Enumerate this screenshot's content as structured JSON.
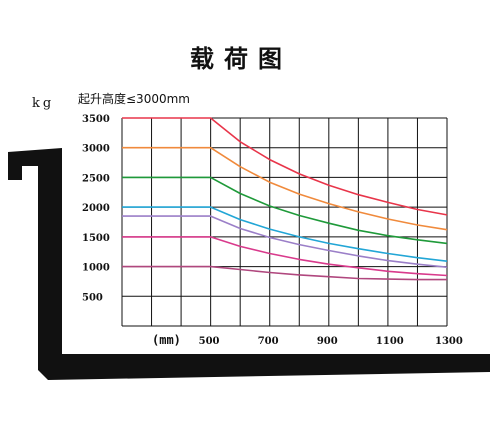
{
  "title": "载荷图",
  "y_unit": "kg",
  "subtitle": "起升高度≤3000mm",
  "x_unit_label": "(mm)",
  "chart_data": {
    "type": "line",
    "title": "载荷图",
    "xlabel": "(mm)",
    "ylabel": "kg",
    "xlim": [
      500,
      1300
    ],
    "ylim": [
      0,
      3500
    ],
    "x_ticks": [
      500,
      700,
      900,
      1100,
      1300
    ],
    "y_ticks": [
      500,
      1000,
      1500,
      2000,
      2500,
      3000,
      3500
    ],
    "grid": true,
    "series": [
      {
        "color": "#e8354a",
        "x": [
          100,
          500,
          600,
          700,
          800,
          900,
          1000,
          1100,
          1200,
          1300
        ],
        "y": [
          3500,
          3500,
          3100,
          2800,
          2560,
          2370,
          2210,
          2080,
          1960,
          1870
        ]
      },
      {
        "color": "#f08a3c",
        "x": [
          100,
          500,
          600,
          700,
          800,
          900,
          1000,
          1100,
          1200,
          1300
        ],
        "y": [
          3000,
          3000,
          2680,
          2420,
          2220,
          2060,
          1920,
          1800,
          1700,
          1620
        ]
      },
      {
        "color": "#1f9a3a",
        "x": [
          100,
          500,
          600,
          700,
          800,
          900,
          1000,
          1100,
          1200,
          1300
        ],
        "y": [
          2500,
          2500,
          2230,
          2020,
          1860,
          1730,
          1610,
          1520,
          1450,
          1390
        ]
      },
      {
        "color": "#22a6d6",
        "x": [
          100,
          500,
          600,
          700,
          800,
          900,
          1000,
          1100,
          1200,
          1300
        ],
        "y": [
          2000,
          2000,
          1790,
          1630,
          1500,
          1390,
          1300,
          1220,
          1150,
          1090
        ]
      },
      {
        "color": "#9b7fc8",
        "x": [
          100,
          500,
          600,
          700,
          800,
          900,
          1000,
          1100,
          1200,
          1300
        ],
        "y": [
          1850,
          1850,
          1640,
          1490,
          1370,
          1270,
          1180,
          1100,
          1040,
          990
        ]
      },
      {
        "color": "#d93a8c",
        "x": [
          100,
          500,
          600,
          700,
          800,
          900,
          1000,
          1100,
          1200,
          1300
        ],
        "y": [
          1500,
          1500,
          1340,
          1220,
          1120,
          1040,
          980,
          920,
          880,
          850
        ]
      },
      {
        "color": "#b0477e",
        "x": [
          100,
          500,
          600,
          700,
          800,
          900,
          1000,
          1100,
          1200,
          1300
        ],
        "y": [
          1000,
          1000,
          950,
          900,
          860,
          830,
          800,
          790,
          780,
          780
        ]
      }
    ]
  }
}
